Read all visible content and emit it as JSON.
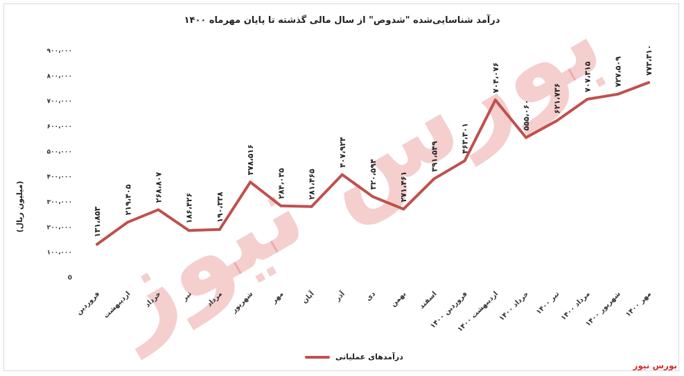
{
  "chart_data": {
    "type": "line",
    "title": "درآمد شناسایی‌شده \"شدوص\" از سال مالی گذشته تا پایان مهرماه ۱۴۰۰",
    "ylabel": "(میلیون ریال)",
    "xlabel": "",
    "ylim": [
      0,
      900000
    ],
    "yticks": [
      "0",
      "۱۰۰،۰۰۰",
      "۲۰۰،۰۰۰",
      "۳۰۰،۰۰۰",
      "۴۰۰،۰۰۰",
      "۵۰۰،۰۰۰",
      "۶۰۰،۰۰۰",
      "۷۰۰،۰۰۰",
      "۸۰۰،۰۰۰",
      "۹۰۰،۰۰۰"
    ],
    "categories": [
      "فروردین",
      "اردیبهشت",
      "خرداد",
      "تیر",
      "مرداد",
      "شهریور",
      "مهر",
      "آبان",
      "آذر",
      "دی",
      "بهمن",
      "اسفند",
      "فروردین ۱۴۰۰",
      "اردیبهشت ۱۴۰۰",
      "خرداد ۱۴۰۰",
      "تیر ۱۴۰۰",
      "مرداد ۱۴۰۰",
      "شهریور ۱۴۰۰",
      "مهر ۱۴۰۰"
    ],
    "series": [
      {
        "name": "درآمدهای عملیاتی",
        "color": "#c0504d",
        "values": [
          131853,
          219405,
          268807,
          186426,
          190338,
          378516,
          284035,
          281465,
          407924,
          320594,
          271461,
          391549,
          463301,
          704076,
          555060,
          621736,
          707315,
          727509,
          773310
        ],
        "labels": [
          "۱۳۱،۸۵۳",
          "۲۱۹،۴۰۵",
          "۲۶۸،۸۰۷",
          "۱۸۶،۴۲۶",
          "۱۹۰،۳۳۸",
          "۳۷۸،۵۱۶",
          "۲۸۴،۰۳۵",
          "۲۸۱،۴۶۵",
          "۴۰۷،۹۲۴",
          "۳۲۰،۵۹۴",
          "۲۷۱،۴۶۱",
          "۳۹۱،۵۴۹",
          "۴۶۳،۳۰۱",
          "۷۰۴،۰۷۶",
          "۵۵۵،۰۶۰",
          "۶۲۱،۷۳۶",
          "۷۰۷،۳۱۵",
          "۷۲۷،۵۰۹",
          "۷۷۳،۳۱۰"
        ]
      }
    ],
    "legend": "bottom",
    "grid": false
  },
  "watermark_text": "بورس نیوز",
  "brand_label": "بورس نیوز"
}
